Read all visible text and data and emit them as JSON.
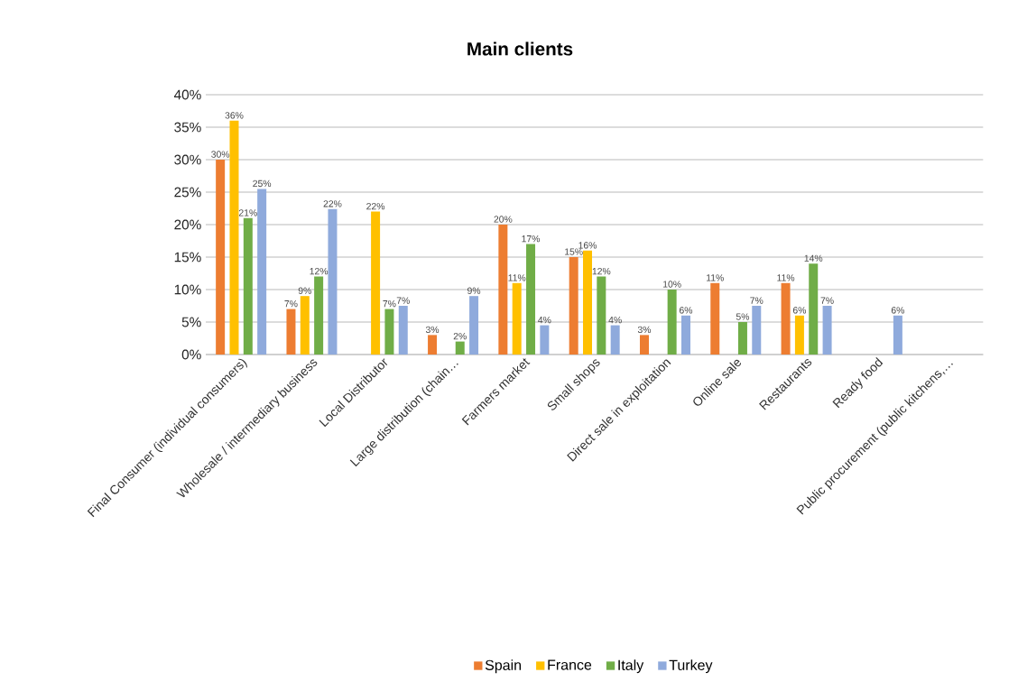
{
  "chart_data": {
    "type": "bar",
    "title": "Main clients",
    "categories": [
      "Final Consumer (individual consumers)",
      "Wholesale / intermediary business",
      "Local Distributor",
      "Large distribution (chain…",
      "Farmers market",
      "Small shops",
      "Direct sale in exploitation",
      "Online sale",
      "Restaurants",
      "Ready food",
      "Public procurement (public kitchens,…"
    ],
    "series": [
      {
        "name": "Spain",
        "color": "#ed7d31",
        "values": [
          30,
          7,
          null,
          3,
          20,
          15,
          3,
          11,
          11,
          null,
          null
        ],
        "value_labels": [
          "30%",
          "7%",
          null,
          "3%",
          "20%",
          "15%",
          "3%",
          "11%",
          "11%",
          null,
          null
        ]
      },
      {
        "name": "France",
        "color": "#ffc000",
        "values": [
          36,
          9,
          22,
          null,
          11,
          16,
          null,
          null,
          6,
          null,
          null
        ],
        "value_labels": [
          "36%",
          "9%",
          "22%",
          null,
          "11%",
          "16%",
          null,
          null,
          "6%",
          null,
          null
        ]
      },
      {
        "name": "Italy",
        "color": "#70ad47",
        "values": [
          21,
          12,
          7,
          2,
          17,
          12,
          10,
          5,
          14,
          null,
          null
        ],
        "value_labels": [
          "21%",
          "12%",
          "7%",
          "2%",
          "17%",
          "12%",
          "10%",
          "5%",
          "14%",
          null,
          null
        ]
      },
      {
        "name": "Turkey",
        "color": "#8faadc",
        "values": [
          25.5,
          22.4,
          7.5,
          9,
          4.5,
          4.5,
          6,
          7.5,
          7.5,
          6,
          null
        ],
        "value_labels": [
          "25%",
          "22%",
          "7%",
          "9%",
          "4%",
          "4%",
          "6%",
          "7%",
          "7%",
          "6%",
          null
        ]
      }
    ],
    "ylim": [
      0,
      40
    ],
    "yticks": [
      {
        "value": 0,
        "label": "0%"
      },
      {
        "value": 5,
        "label": "5%"
      },
      {
        "value": 10,
        "label": "10%"
      },
      {
        "value": 15,
        "label": "15%"
      },
      {
        "value": 20,
        "label": "20%"
      },
      {
        "value": 25,
        "label": "25%"
      },
      {
        "value": 30,
        "label": "30%"
      },
      {
        "value": 35,
        "label": "35%"
      },
      {
        "value": 40,
        "label": "40%"
      }
    ],
    "grid": "y",
    "legend": "bottom"
  }
}
